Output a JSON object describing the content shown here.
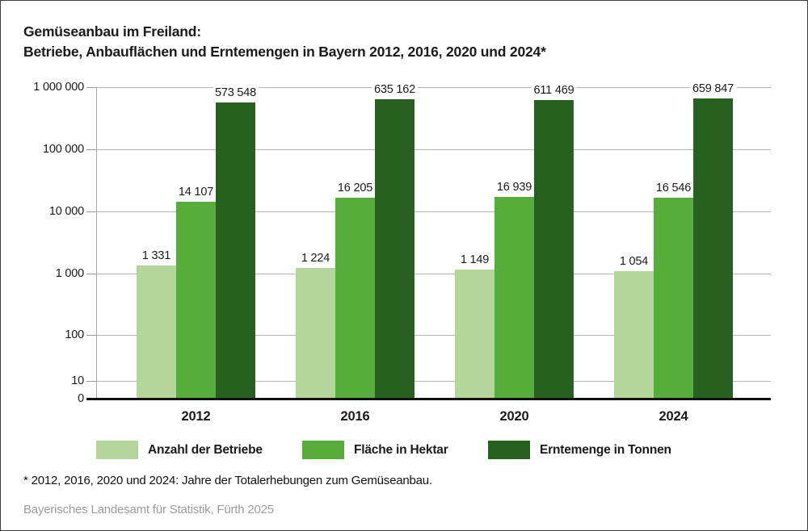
{
  "title": {
    "line1": "Gemüseanbau im Freiland:",
    "line2": "Betriebe, Anbauflächen und Erntemengen in Bayern 2012, 2016, 2020 und 2024*"
  },
  "chart_data": {
    "type": "bar",
    "y_scale": "log",
    "title": "Gemüseanbau im Freiland: Betriebe, Anbauflächen und Erntemengen in Bayern 2012, 2016, 2020 und 2024",
    "categories": [
      "2012",
      "2016",
      "2020",
      "2024"
    ],
    "series": [
      {
        "name": "Anzahl der Betriebe",
        "color": "#b4d69a",
        "values": [
          1331,
          1224,
          1149,
          1054
        ],
        "value_labels": [
          "1 331",
          "1 224",
          "1 149",
          "1 054"
        ]
      },
      {
        "name": "Fläche in Hektar",
        "color": "#56ad3b",
        "values": [
          14107,
          16205,
          16939,
          16546
        ],
        "value_labels": [
          "14 107",
          "16 205",
          "16 939",
          "16 546"
        ]
      },
      {
        "name": "Erntemenge in Tonnen",
        "color": "#26611f",
        "values": [
          573548,
          635162,
          611469,
          659847
        ],
        "value_labels": [
          "573 548",
          "635 162",
          "611 469",
          "659 847"
        ]
      }
    ],
    "y_ticks": [
      {
        "label": "1 000 000",
        "value": 1000000
      },
      {
        "label": "100 000",
        "value": 100000
      },
      {
        "label": "10 000",
        "value": 10000
      },
      {
        "label": "1 000",
        "value": 1000
      },
      {
        "label": "100",
        "value": 100
      },
      {
        "label": "10",
        "value": 10
      },
      {
        "label": "0",
        "value": 0
      }
    ],
    "ylim": [
      0,
      1000000
    ],
    "grid": true,
    "legend_position": "bottom"
  },
  "footnote": "* 2012, 2016, 2020 und 2024: Jahre der Totalerhebungen zum Gemüseanbau.",
  "source": "Bayerisches Landesamt für Statistik, Fürth 2025",
  "colors": {
    "series_light": "#b4d69a",
    "series_medium": "#56ad3b",
    "series_dark": "#26611f",
    "gridline": "#b3b3b3",
    "axis_baseline": "#111111",
    "source_text": "#9c9c9c"
  }
}
